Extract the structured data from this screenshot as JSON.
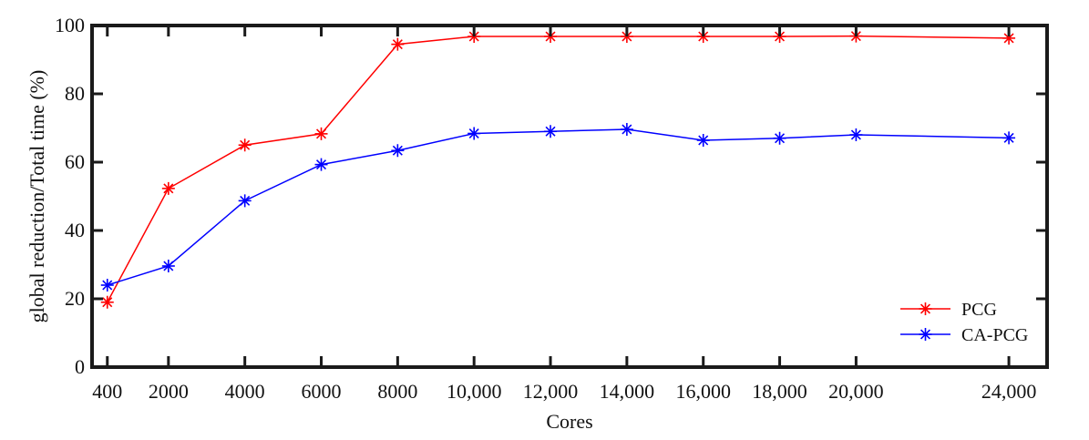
{
  "chart_data": {
    "type": "line",
    "xlabel": "Cores",
    "ylabel": "global reduction/Total time (%)",
    "x": [
      400,
      2000,
      4000,
      6000,
      8000,
      10000,
      12000,
      14000,
      16000,
      18000,
      20000,
      24000
    ],
    "x_tick_labels": [
      "400",
      "2000",
      "4000",
      "6000",
      "8000",
      "10,000",
      "12,000",
      "14,000",
      "16,000",
      "18,000",
      "20,000",
      "24,000"
    ],
    "xlim": [
      0,
      25000
    ],
    "ylim": [
      0,
      100
    ],
    "y_ticks": [
      0,
      20,
      40,
      60,
      80,
      100
    ],
    "grid": false,
    "legend_position": "bottom-right",
    "series": [
      {
        "name": "PCG",
        "color": "#ff0000",
        "marker": "asterisk",
        "values": [
          19,
          52.3,
          65,
          68.3,
          94.5,
          96.8,
          96.8,
          96.8,
          96.8,
          96.8,
          96.9,
          96.3
        ]
      },
      {
        "name": "CA-PCG",
        "color": "#0000ff",
        "marker": "asterisk",
        "values": [
          24,
          29.6,
          48.7,
          59.3,
          63.4,
          68.4,
          69,
          69.6,
          66.4,
          67,
          68,
          67.1
        ]
      }
    ]
  }
}
